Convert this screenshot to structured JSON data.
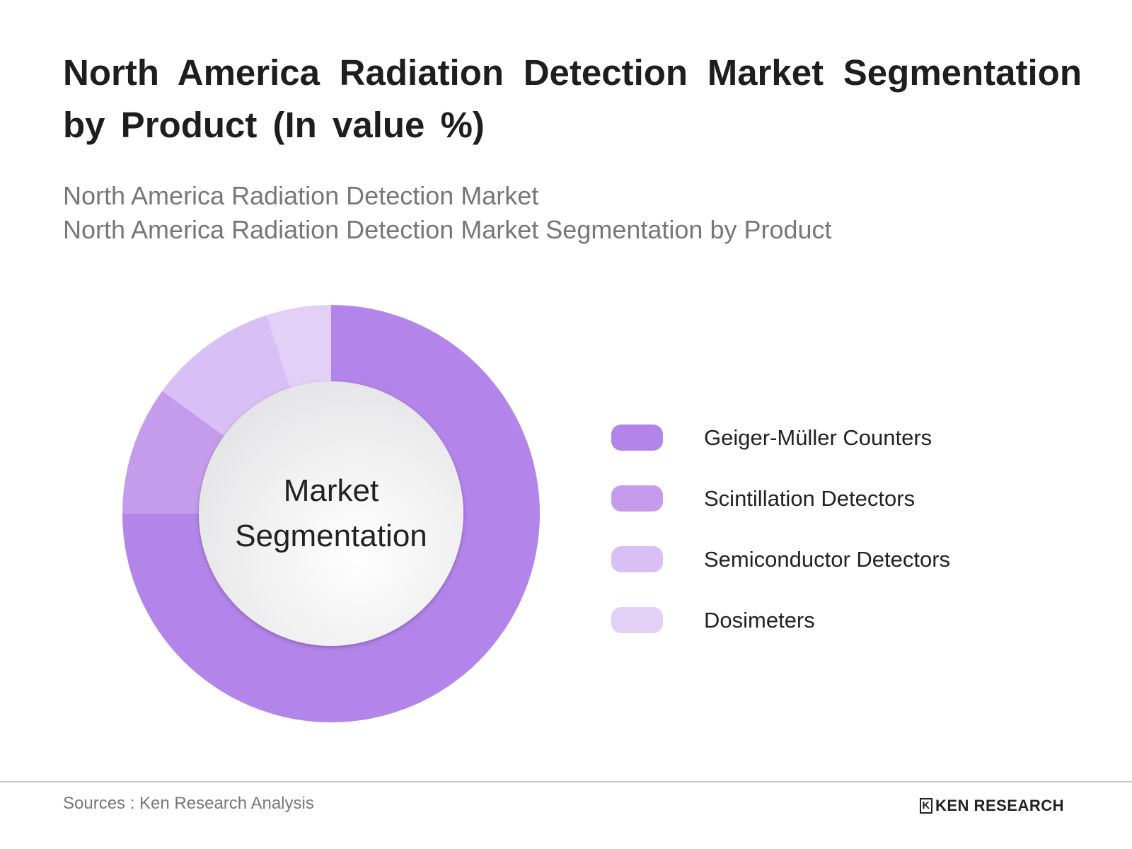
{
  "title": "North America Radiation Detection Market Segmentation by Product (In value %)",
  "subtitle_1": "North America Radiation Detection Market",
  "subtitle_2": "North America Radiation Detection Market Segmentation by Product",
  "center_label_1": "Market",
  "center_label_2": "Segmentation",
  "source": "Sources : Ken Research Analysis",
  "logo_text": "KEN RESEARCH",
  "chart_data": {
    "type": "pie",
    "subtype": "donut",
    "title": "North America Radiation Detection Market Segmentation by Product (In value %)",
    "categories": [
      "Geiger-Müller Counters",
      "Scintillation Detectors",
      "Semiconductor Detectors",
      "Dosimeters"
    ],
    "values": [
      75,
      10,
      10,
      5
    ],
    "colors": [
      "#b384ea",
      "#c59cec",
      "#d8bff5",
      "#e3d0f7"
    ],
    "legend_position": "right"
  }
}
